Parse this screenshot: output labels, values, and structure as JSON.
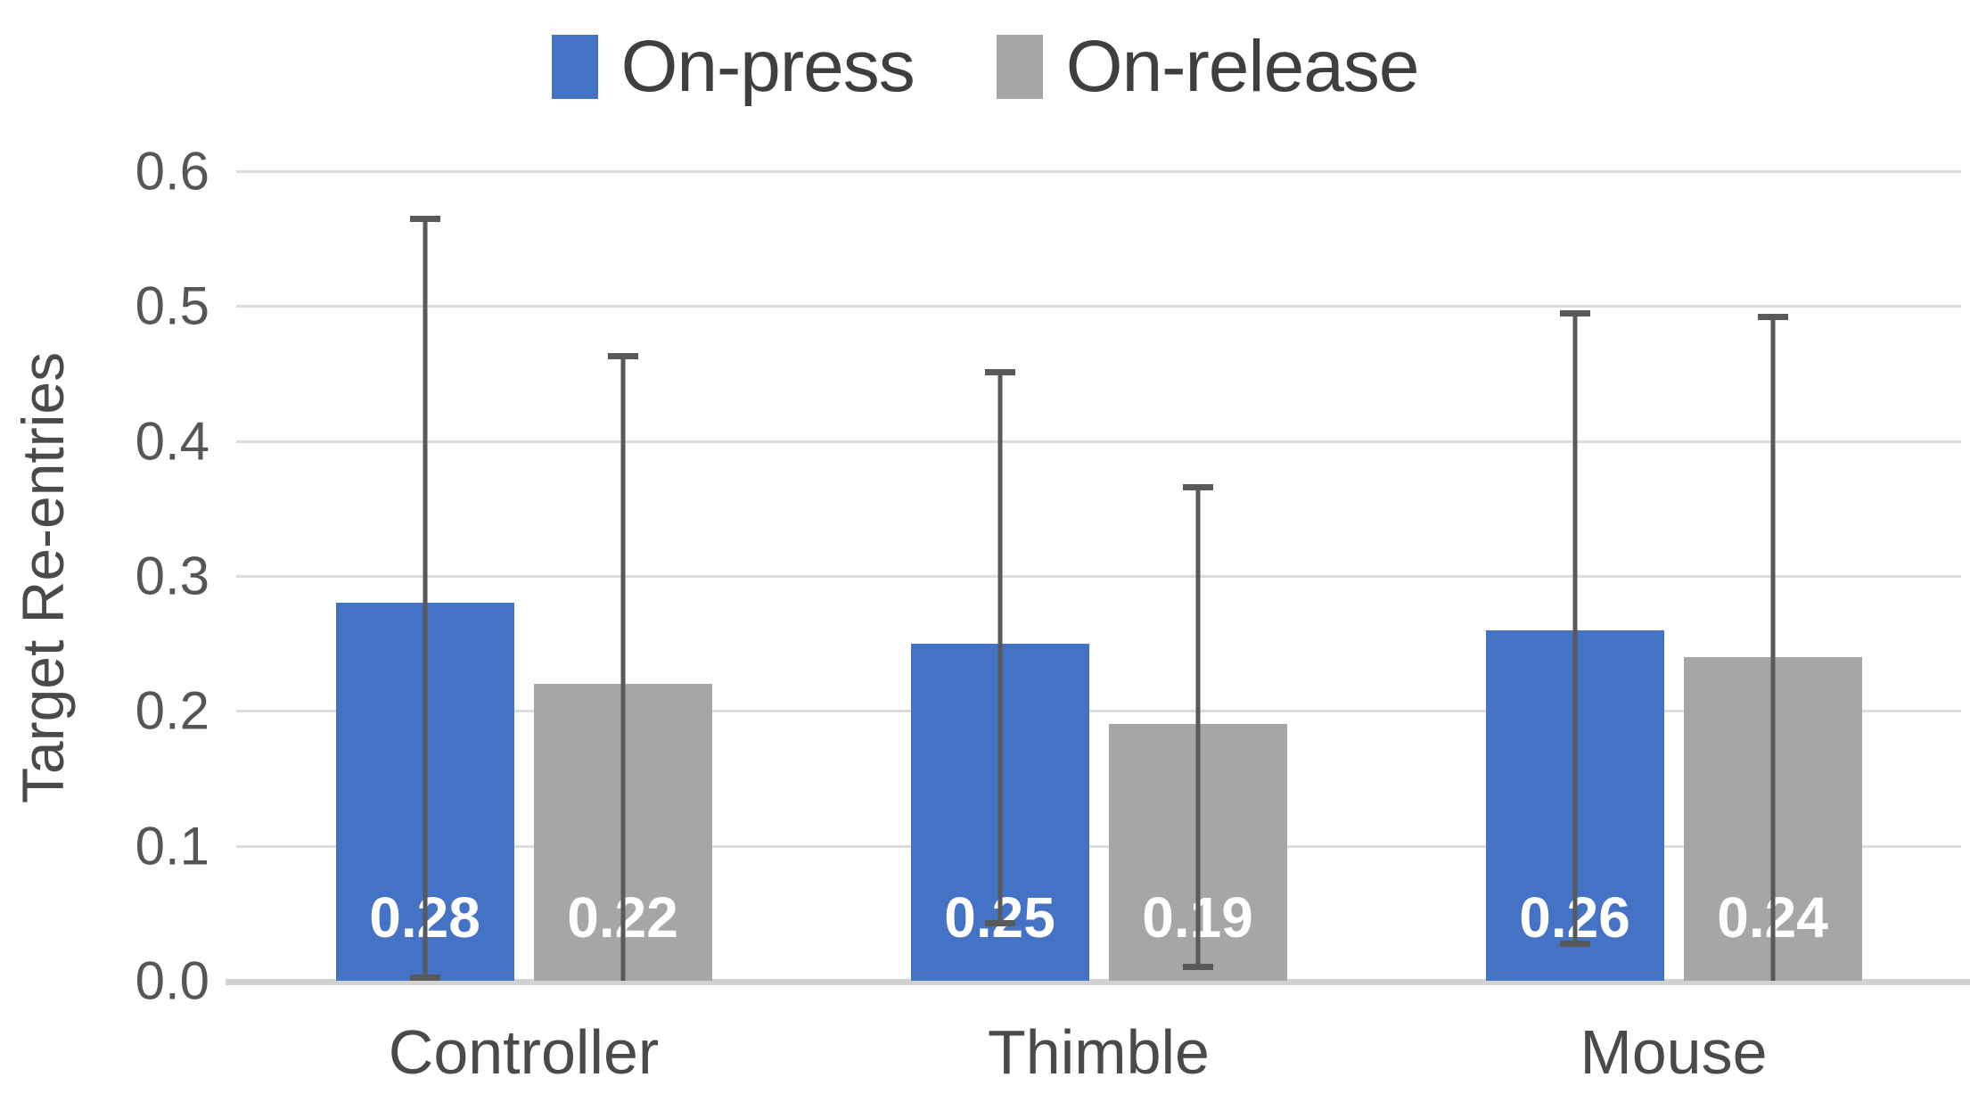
{
  "chart_data": {
    "type": "bar",
    "title": "",
    "xlabel": "",
    "ylabel": "Target Re-entries",
    "categories": [
      "Controller",
      "Thimble",
      "Mouse"
    ],
    "series": [
      {
        "name": "On-press",
        "color": "#4472C4",
        "values": [
          0.28,
          0.25,
          0.26
        ],
        "value_labels": [
          "0.28",
          "0.25",
          "0.26"
        ],
        "error_top": [
          0.565,
          0.451,
          0.495
        ],
        "error_bottom": [
          0.002,
          0.042,
          0.027
        ],
        "bottom_cap": [
          true,
          true,
          true
        ]
      },
      {
        "name": "On-release",
        "color": "#A6A6A6",
        "values": [
          0.22,
          0.19,
          0.24
        ],
        "value_labels": [
          "0.22",
          "0.19",
          "0.24"
        ],
        "error_top": [
          0.463,
          0.366,
          0.492
        ],
        "error_bottom": [
          0.0,
          0.01,
          0.0
        ],
        "bottom_cap": [
          false,
          true,
          false
        ]
      }
    ],
    "ylim": [
      0.0,
      0.6
    ],
    "ytick_labels": [
      "0.0",
      "0.1",
      "0.2",
      "0.3",
      "0.4",
      "0.5",
      "0.6"
    ],
    "grid": true,
    "legend_position": "top-center",
    "value_label_color": "#FFFFFF",
    "error_bar_color": "#595959",
    "gridline_color": "#DCDCDC"
  }
}
